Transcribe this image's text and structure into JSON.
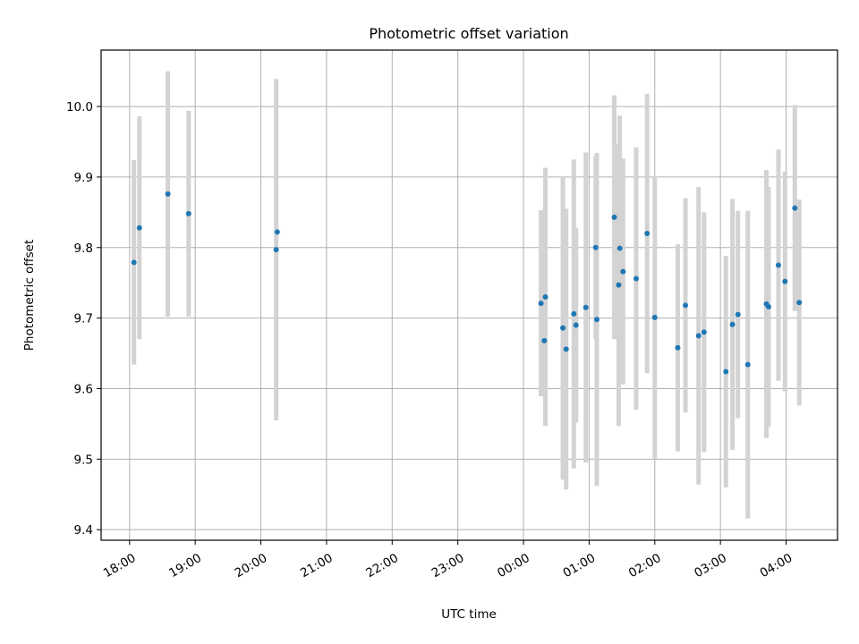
{
  "chart_data": {
    "type": "scatter",
    "title": "Photometric offset variation",
    "xlabel": "UTC time",
    "ylabel": "Photometric offset",
    "x_tick_labels": [
      "18:00",
      "19:00",
      "20:00",
      "21:00",
      "22:00",
      "23:00",
      "00:00",
      "01:00",
      "02:00",
      "03:00",
      "04:00"
    ],
    "x_ticks": [
      "2000-01-01T18:00",
      "2000-01-01T19:00",
      "2000-01-01T20:00",
      "2000-01-01T21:00",
      "2000-01-01T22:00",
      "2000-01-01T23:00",
      "2000-01-02T00:00",
      "2000-01-02T01:00",
      "2000-01-02T02:00",
      "2000-01-02T03:00",
      "2000-01-02T04:00"
    ],
    "xlim": [
      "2000-01-01T17:34",
      "2000-01-02T04:47"
    ],
    "y_ticks": [
      9.4,
      9.5,
      9.6,
      9.7,
      9.8,
      9.9,
      10.0
    ],
    "y_tick_labels": [
      "9.4",
      "9.5",
      "9.6",
      "9.7",
      "9.8",
      "9.9",
      "10.0"
    ],
    "ylim": [
      9.385,
      10.08
    ],
    "grid": true,
    "colors": {
      "point": "#1f77b4",
      "errorbar": "#d3d3d3",
      "grid": "#b0b0b0"
    },
    "points": [
      {
        "t": "2000-01-01T18:04",
        "y": 9.779,
        "err": 0.145
      },
      {
        "t": "2000-01-01T18:09",
        "y": 9.828,
        "err": 0.158
      },
      {
        "t": "2000-01-01T18:35",
        "y": 9.876,
        "err": 0.174
      },
      {
        "t": "2000-01-01T18:54",
        "y": 9.848,
        "err": 0.146
      },
      {
        "t": "2000-01-01T20:14",
        "y": 9.797,
        "err": 0.242
      },
      {
        "t": "2000-01-01T20:15",
        "y": 9.822,
        "err": 0.0
      },
      {
        "t": "2000-01-02T00:16",
        "y": 9.721,
        "err": 0.132
      },
      {
        "t": "2000-01-02T00:19",
        "y": 9.668,
        "err": 0.0
      },
      {
        "t": "2000-01-02T00:20",
        "y": 9.73,
        "err": 0.183
      },
      {
        "t": "2000-01-02T00:36",
        "y": 9.686,
        "err": 0.215
      },
      {
        "t": "2000-01-02T00:39",
        "y": 9.656,
        "err": 0.199
      },
      {
        "t": "2000-01-02T00:46",
        "y": 9.706,
        "err": 0.219
      },
      {
        "t": "2000-01-02T00:48",
        "y": 9.69,
        "err": 0.138
      },
      {
        "t": "2000-01-02T00:57",
        "y": 9.715,
        "err": 0.22
      },
      {
        "t": "2000-01-02T01:06",
        "y": 9.8,
        "err": 0.13
      },
      {
        "t": "2000-01-02T01:07",
        "y": 9.698,
        "err": 0.236
      },
      {
        "t": "2000-01-02T01:23",
        "y": 9.843,
        "err": 0.173
      },
      {
        "t": "2000-01-02T01:27",
        "y": 9.747,
        "err": 0.2
      },
      {
        "t": "2000-01-02T01:28",
        "y": 9.799,
        "err": 0.188
      },
      {
        "t": "2000-01-02T01:31",
        "y": 9.766,
        "err": 0.16
      },
      {
        "t": "2000-01-02T01:43",
        "y": 9.756,
        "err": 0.186
      },
      {
        "t": "2000-01-02T01:53",
        "y": 9.82,
        "err": 0.198
      },
      {
        "t": "2000-01-02T02:00",
        "y": 9.701,
        "err": 0.2
      },
      {
        "t": "2000-01-02T02:21",
        "y": 9.658,
        "err": 0.147
      },
      {
        "t": "2000-01-02T02:28",
        "y": 9.718,
        "err": 0.152
      },
      {
        "t": "2000-01-02T02:40",
        "y": 9.675,
        "err": 0.211
      },
      {
        "t": "2000-01-02T02:45",
        "y": 9.68,
        "err": 0.17
      },
      {
        "t": "2000-01-02T03:05",
        "y": 9.624,
        "err": 0.164
      },
      {
        "t": "2000-01-02T03:11",
        "y": 9.691,
        "err": 0.178
      },
      {
        "t": "2000-01-02T03:16",
        "y": 9.705,
        "err": 0.147
      },
      {
        "t": "2000-01-02T03:25",
        "y": 9.634,
        "err": 0.218
      },
      {
        "t": "2000-01-02T03:42",
        "y": 9.72,
        "err": 0.19
      },
      {
        "t": "2000-01-02T03:44",
        "y": 9.716,
        "err": 0.17
      },
      {
        "t": "2000-01-02T03:53",
        "y": 9.775,
        "err": 0.164
      },
      {
        "t": "2000-01-02T03:59",
        "y": 9.752,
        "err": 0.156
      },
      {
        "t": "2000-01-02T04:08",
        "y": 9.856,
        "err": 0.146
      },
      {
        "t": "2000-01-02T04:12",
        "y": 9.722,
        "err": 0.146
      }
    ]
  }
}
